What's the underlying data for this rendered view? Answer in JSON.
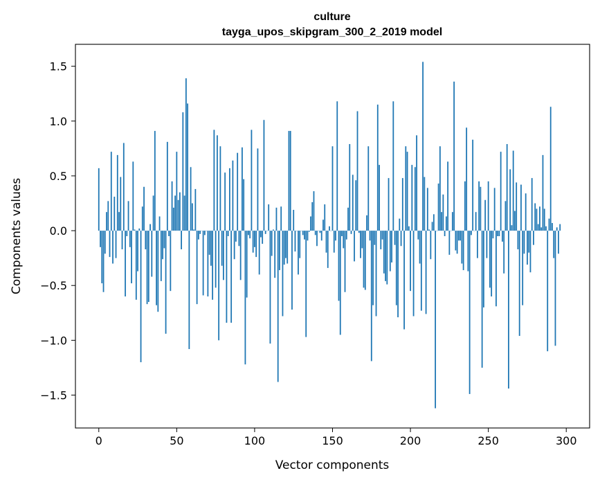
{
  "chart_data": {
    "type": "bar",
    "title": "culture",
    "subtitle": "tayga_upos_skipgram_300_2_2019 model",
    "xlabel": "Vector components",
    "ylabel": "Components values",
    "xlim": [
      -15,
      315
    ],
    "ylim": [
      -1.8,
      1.7
    ],
    "xticks": [
      0,
      50,
      100,
      150,
      200,
      250,
      300
    ],
    "yticks": [
      1.5,
      1.0,
      0.5,
      0.0,
      -0.5,
      -1.0,
      -1.5
    ],
    "ytick_labels": [
      "1.5",
      "1.0",
      "0.5",
      "0.0",
      "−0.5",
      "−1.0",
      "−1.5"
    ],
    "bar_color": "#1f77b4",
    "grid": false,
    "legend": "none",
    "values": [
      0.57,
      -0.15,
      -0.48,
      -0.56,
      -0.21,
      0.17,
      0.27,
      -0.24,
      0.72,
      -0.3,
      0.31,
      -0.25,
      0.69,
      0.17,
      0.49,
      -0.17,
      0.8,
      -0.6,
      -0.05,
      0.27,
      -0.15,
      -0.48,
      0.63,
      0.01,
      -0.63,
      -0.37,
      0.02,
      -1.2,
      0.22,
      0.4,
      -0.17,
      -0.67,
      -0.65,
      0.06,
      -0.42,
      0.32,
      0.91,
      -0.68,
      -0.74,
      0.13,
      -0.46,
      -0.26,
      -0.16,
      -0.94,
      0.81,
      -0.05,
      -0.55,
      0.45,
      0.21,
      0.32,
      0.72,
      0.28,
      0.35,
      -0.17,
      1.08,
      0.32,
      1.39,
      1.16,
      -1.08,
      0.58,
      0.25,
      0.01,
      0.38,
      -0.67,
      -0.08,
      -0.03,
      0.0,
      -0.59,
      -0.04,
      0.0,
      -0.6,
      -0.22,
      -0.32,
      -0.63,
      0.92,
      -0.52,
      0.87,
      -1.0,
      0.77,
      -0.32,
      -0.45,
      0.53,
      -0.84,
      -0.05,
      0.57,
      -0.84,
      0.64,
      -0.26,
      -0.1,
      0.71,
      -0.14,
      -0.45,
      0.76,
      0.47,
      -1.22,
      -0.61,
      -0.04,
      -0.07,
      0.92,
      -0.2,
      -0.15,
      -0.24,
      0.75,
      -0.4,
      -0.06,
      -0.12,
      1.01,
      -0.03,
      0.0,
      0.24,
      -1.03,
      -0.23,
      0.01,
      -0.43,
      0.21,
      -1.38,
      -0.36,
      0.22,
      -0.78,
      -0.31,
      -0.25,
      -0.3,
      0.91,
      0.91,
      -0.72,
      0.19,
      -0.19,
      0.0,
      -0.4,
      -0.25,
      0.0,
      -0.04,
      -0.08,
      -0.97,
      -0.09,
      -0.01,
      0.13,
      0.26,
      0.36,
      -0.04,
      -0.14,
      0.0,
      -0.02,
      -0.09,
      0.1,
      0.24,
      -0.2,
      -0.34,
      0.04,
      0.0,
      0.77,
      -0.2,
      -0.09,
      1.18,
      -0.64,
      -0.95,
      -0.05,
      -0.16,
      -0.56,
      -0.08,
      0.21,
      0.79,
      -0.03,
      0.51,
      -0.28,
      0.46,
      1.09,
      -0.02,
      -0.25,
      -0.16,
      -0.52,
      -0.54,
      0.14,
      0.77,
      -0.09,
      -1.19,
      -0.68,
      -0.13,
      -0.78,
      1.15,
      0.6,
      -0.17,
      -0.08,
      -0.39,
      -0.46,
      -0.49,
      0.48,
      -0.37,
      -0.29,
      1.18,
      -0.13,
      -0.68,
      -0.79,
      0.11,
      -0.14,
      0.48,
      -0.9,
      0.77,
      0.72,
      0.04,
      -0.55,
      0.6,
      -0.78,
      0.58,
      0.87,
      -0.08,
      -0.3,
      -0.73,
      1.54,
      0.49,
      -0.76,
      0.39,
      0.01,
      -0.26,
      0.08,
      0.15,
      -1.62,
      0.0,
      0.43,
      0.77,
      0.17,
      0.33,
      -0.05,
      0.13,
      0.63,
      -0.22,
      0.0,
      0.17,
      1.36,
      -0.18,
      -0.21,
      -0.09,
      -0.09,
      -0.3,
      -0.36,
      0.45,
      0.94,
      -0.37,
      -1.49,
      -0.04,
      0.83,
      0.0,
      0.17,
      -0.25,
      0.45,
      0.4,
      -1.25,
      -0.7,
      0.28,
      -0.25,
      0.45,
      -0.52,
      -0.6,
      -0.07,
      0.39,
      -0.69,
      -0.05,
      -0.05,
      0.72,
      -0.1,
      -0.39,
      0.27,
      0.79,
      -1.44,
      0.56,
      0.05,
      0.73,
      0.18,
      0.44,
      -0.17,
      -0.96,
      0.42,
      -0.68,
      -0.21,
      0.34,
      -0.31,
      -0.2,
      -0.38,
      0.48,
      -0.13,
      0.25,
      0.2,
      0.06,
      0.22,
      0.03,
      0.69,
      0.2,
      0.04,
      -1.1,
      0.11,
      1.13,
      0.07,
      -0.25,
      -1.05,
      0.03,
      -0.21,
      0.06
    ]
  }
}
